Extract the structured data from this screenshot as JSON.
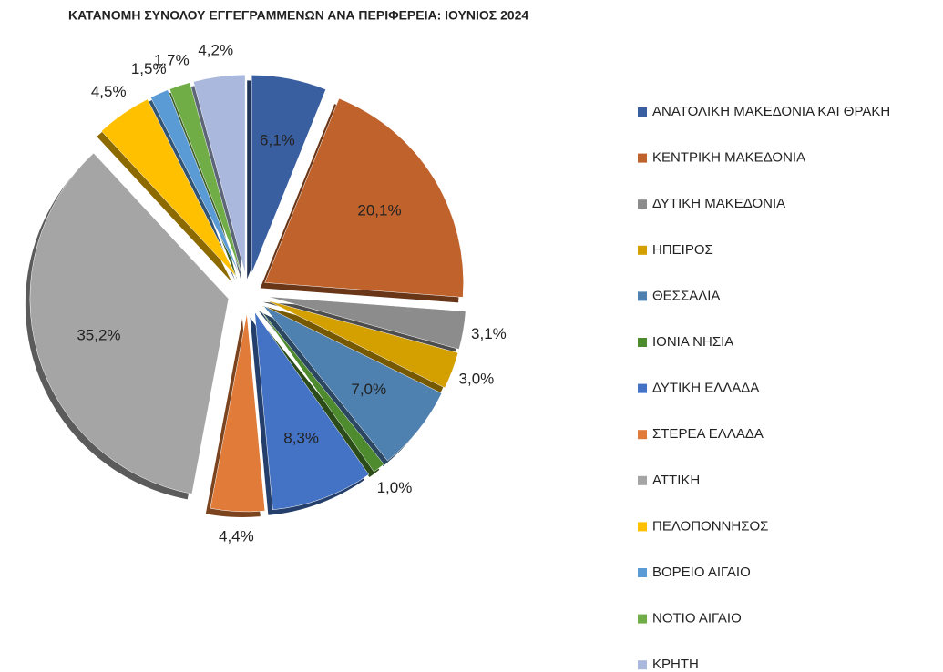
{
  "chart_data": {
    "type": "pie",
    "title": "ΚΑΤΑΝΟΜΗ ΣΥΝΟΛΟΥ ΕΓΓΕΓΡΑΜΜΕΝΩΝ ΑΝΑ ΠΕΡΙΦΕΡΕΙΑ: ΙΟΥΝΙΟΣ 2024",
    "categories": [
      "ΑΝΑΤΟΛΙΚΗ ΜΑΚΕΔΟΝΙΑ ΚΑΙ ΘΡΑΚΗ",
      "ΚΕΝΤΡΙΚΗ ΜΑΚΕΔΟΝΙΑ",
      "ΔΥΤΙΚΗ ΜΑΚΕΔΟΝΙΑ",
      "ΗΠΕΙΡΟΣ",
      "ΘΕΣΣΑΛΙΑ",
      "ΙΟΝΙΑ ΝΗΣΙΑ",
      "ΔΥΤΙΚΗ ΕΛΛΑΔΑ",
      "ΣΤΕΡΕΑ ΕΛΛΑΔΑ",
      "ΑΤΤΙΚΗ",
      "ΠΕΛΟΠΟΝΝΗΣΟΣ",
      "ΒΟΡΕΙΟ ΑΙΓΑΙΟ",
      "ΝΟΤΙΟ ΑΙΓΑΙΟ",
      "ΚΡΗΤΗ"
    ],
    "values": [
      6.1,
      20.1,
      3.1,
      3.0,
      7.0,
      1.0,
      8.3,
      4.4,
      35.2,
      4.5,
      1.5,
      1.7,
      4.2
    ],
    "value_labels": [
      "6,1%",
      "20,1%",
      "3,1%",
      "3,0%",
      "7,0%",
      "1,0%",
      "8,3%",
      "4,4%",
      "35,2%",
      "4,5%",
      "1,5%",
      "1,7%",
      "4,2%"
    ],
    "colors": [
      "#3a5fa0",
      "#c0622c",
      "#8c8c8c",
      "#d4a000",
      "#4f81b0",
      "#4e8a2e",
      "#4472c4",
      "#e07b39",
      "#a5a5a5",
      "#ffc000",
      "#5b9bd5",
      "#70ad47",
      "#a9b8dc"
    ]
  }
}
